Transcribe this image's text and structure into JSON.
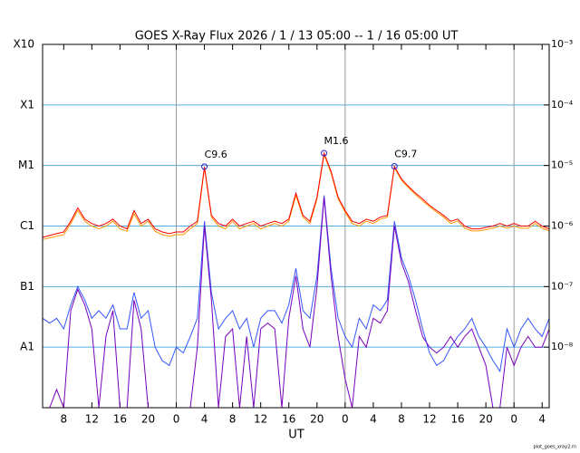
{
  "chart_data": {
    "type": "line",
    "title": "GOES X-Ray Flux   2026  /  1  /  13    05:00 --  1  /  16    05:00    UT",
    "xlabel": "UT",
    "footer": "plot_goes_xray2.rn",
    "log_scale": true,
    "grid": true,
    "ylim": [
      1e-09,
      0.001
    ],
    "yticks": [
      {
        "value": 0.001,
        "label": "X10"
      },
      {
        "value": 0.0001,
        "label": "X1"
      },
      {
        "value": 1e-05,
        "label": "M1"
      },
      {
        "value": 1e-06,
        "label": "C1"
      },
      {
        "value": 1e-07,
        "label": "B1"
      },
      {
        "value": 1e-08,
        "label": "A1"
      }
    ],
    "y2lim": [
      1e-09,
      0.001
    ],
    "y2ticks": [
      {
        "value": 0.001,
        "label": "10⁻³"
      },
      {
        "value": 0.0001,
        "label": "10⁻⁴"
      },
      {
        "value": 1e-05,
        "label": "10⁻⁵"
      },
      {
        "value": 1e-06,
        "label": "10⁻⁶"
      },
      {
        "value": 1e-07,
        "label": "10⁻⁷"
      },
      {
        "value": 1e-08,
        "label": "10⁻⁸"
      }
    ],
    "xlim": [
      0,
      72
    ],
    "xticks": [
      {
        "value": 3,
        "label": "8"
      },
      {
        "value": 7,
        "label": "12"
      },
      {
        "value": 11,
        "label": "16"
      },
      {
        "value": 15,
        "label": "20"
      },
      {
        "value": 19,
        "label": "0"
      },
      {
        "value": 23,
        "label": "4"
      },
      {
        "value": 27,
        "label": "8"
      },
      {
        "value": 31,
        "label": "12"
      },
      {
        "value": 35,
        "label": "16"
      },
      {
        "value": 39,
        "label": "20"
      },
      {
        "value": 43,
        "label": "0"
      },
      {
        "value": 47,
        "label": "4"
      },
      {
        "value": 51,
        "label": "8"
      },
      {
        "value": 55,
        "label": "12"
      },
      {
        "value": 59,
        "label": "16"
      },
      {
        "value": 63,
        "label": "20"
      },
      {
        "value": 67,
        "label": "0"
      },
      {
        "value": 71,
        "label": "4"
      }
    ],
    "xgrid": [
      19,
      43,
      67
    ],
    "x": [
      0,
      1,
      2,
      3,
      4,
      5,
      6,
      7,
      8,
      9,
      10,
      11,
      12,
      13,
      14,
      15,
      16,
      17,
      18,
      19,
      20,
      21,
      22,
      23,
      24,
      25,
      26,
      27,
      28,
      29,
      30,
      31,
      32,
      33,
      34,
      35,
      36,
      37,
      38,
      39,
      40,
      41,
      42,
      43,
      44,
      45,
      46,
      47,
      48,
      49,
      50,
      51,
      52,
      53,
      54,
      55,
      56,
      57,
      58,
      59,
      60,
      61,
      62,
      63,
      64,
      65,
      66,
      67,
      68,
      69,
      70,
      71,
      72
    ],
    "series": [
      {
        "color": "#ff9900",
        "values": [
          6e-07,
          6.4e-07,
          6.8e-07,
          7.2e-07,
          1.1e-06,
          1.8e-06,
          1.2e-06,
          1e-06,
          9e-07,
          1e-06,
          1.2e-06,
          9e-07,
          8.2e-07,
          1.6e-06,
          1e-06,
          1.2e-06,
          8.2e-07,
          7.2e-07,
          6.8e-07,
          7.2e-07,
          7.2e-07,
          9e-07,
          1.1e-06,
          9e-06,
          1.4e-06,
          1e-06,
          9e-07,
          1.2e-06,
          9e-07,
          1e-06,
          1.1e-06,
          9e-07,
          1e-06,
          1.1e-06,
          1e-06,
          1.2e-06,
          3.2e-06,
          1.4e-06,
          1.1e-06,
          2.8e-06,
          1.5e-05,
          7.5e-06,
          2.8e-06,
          1.7e-06,
          1.1e-06,
          1e-06,
          1.2e-06,
          1.1e-06,
          1.3e-06,
          1.4e-06,
          9.2e-06,
          5.7e-06,
          4.3e-06,
          3.3e-06,
          2.6e-06,
          2.1e-06,
          1.7e-06,
          1.4e-06,
          1.1e-06,
          1.2e-06,
          9.2e-07,
          8.3e-07,
          8.3e-07,
          8.7e-07,
          9.2e-07,
          1e-06,
          9.2e-07,
          1e-06,
          9.2e-07,
          9.2e-07,
          1.1e-06,
          9.2e-07,
          8.3e-07
        ]
      },
      {
        "color": "#ff0000",
        "values": [
          6.5e-07,
          7e-07,
          7.5e-07,
          8e-07,
          1.2e-06,
          2e-06,
          1.3e-06,
          1.1e-06,
          1e-06,
          1.1e-06,
          1.3e-06,
          1e-06,
          9e-07,
          1.8e-06,
          1.1e-06,
          1.3e-06,
          9e-07,
          8e-07,
          7.5e-07,
          8e-07,
          8e-07,
          1e-06,
          1.2e-06,
          9.6e-06,
          1.5e-06,
          1.1e-06,
          1e-06,
          1.3e-06,
          1e-06,
          1.1e-06,
          1.2e-06,
          1e-06,
          1.1e-06,
          1.2e-06,
          1.1e-06,
          1.3e-06,
          3.5e-06,
          1.5e-06,
          1.2e-06,
          3e-06,
          1.6e-05,
          8e-06,
          3e-06,
          1.8e-06,
          1.2e-06,
          1.1e-06,
          1.3e-06,
          1.2e-06,
          1.4e-06,
          1.5e-06,
          9.7e-06,
          6e-06,
          4.5e-06,
          3.5e-06,
          2.8e-06,
          2.2e-06,
          1.8e-06,
          1.5e-06,
          1.2e-06,
          1.3e-06,
          1e-06,
          9e-07,
          9e-07,
          9.5e-07,
          1e-06,
          1.1e-06,
          1e-06,
          1.1e-06,
          1e-06,
          1e-06,
          1.2e-06,
          1e-06,
          9e-07
        ]
      },
      {
        "color": "#3355ff",
        "values": [
          3e-08,
          2.5e-08,
          3e-08,
          2e-08,
          5e-08,
          1e-07,
          6e-08,
          3e-08,
          4e-08,
          3e-08,
          5e-08,
          2e-08,
          2e-08,
          8e-08,
          3e-08,
          4e-08,
          1e-08,
          6e-09,
          5e-09,
          1e-08,
          8e-09,
          1.5e-08,
          3e-08,
          1.2e-06,
          8e-08,
          2e-08,
          3e-08,
          4e-08,
          2e-08,
          3e-08,
          1e-08,
          3e-08,
          4e-08,
          4e-08,
          2.5e-08,
          5e-08,
          2e-07,
          4e-08,
          3e-08,
          1.5e-07,
          3.2e-06,
          2e-07,
          3e-08,
          1.5e-08,
          1e-08,
          3e-08,
          2e-08,
          5e-08,
          4e-08,
          6e-08,
          1.2e-06,
          3e-07,
          1.5e-07,
          6e-08,
          2e-08,
          8e-09,
          5e-09,
          6e-09,
          1e-08,
          1.5e-08,
          2e-08,
          3e-08,
          1.5e-08,
          1e-08,
          6e-09,
          4e-09,
          2e-08,
          1e-08,
          2e-08,
          3e-08,
          2e-08,
          1.5e-08,
          3e-08
        ]
      },
      {
        "color": "#7700bb",
        "values": [
          1e-09,
          1e-09,
          2e-09,
          1e-09,
          4e-08,
          9e-08,
          5e-08,
          2e-08,
          1e-09,
          1.5e-08,
          4e-08,
          1e-09,
          1e-09,
          6e-08,
          2e-08,
          1e-09,
          1e-09,
          1e-09,
          1e-09,
          1e-09,
          1e-09,
          1e-09,
          1e-08,
          1e-06,
          6e-08,
          1e-09,
          1.5e-08,
          2e-08,
          1e-09,
          1.5e-08,
          1e-09,
          2e-08,
          2.5e-08,
          2e-08,
          1e-09,
          3e-08,
          1.5e-07,
          2e-08,
          1e-08,
          1e-07,
          3e-06,
          1.5e-07,
          1.5e-08,
          3e-09,
          1e-09,
          1.5e-08,
          1e-08,
          3e-08,
          2.5e-08,
          4e-08,
          1e-06,
          2.5e-07,
          1.2e-07,
          4e-08,
          1.5e-08,
          1e-08,
          8e-09,
          1e-08,
          1.5e-08,
          1e-08,
          1.5e-08,
          2e-08,
          1e-08,
          5e-09,
          1e-09,
          1e-09,
          1e-08,
          5e-09,
          1e-08,
          1.5e-08,
          1e-08,
          1e-08,
          2e-08
        ]
      }
    ],
    "annotations": [
      {
        "text": "C9.6",
        "x": 23,
        "y": 9.6e-06
      },
      {
        "text": "M1.6",
        "x": 40,
        "y": 1.6e-05
      },
      {
        "text": "C9.7",
        "x": 50,
        "y": 9.7e-06
      }
    ]
  }
}
